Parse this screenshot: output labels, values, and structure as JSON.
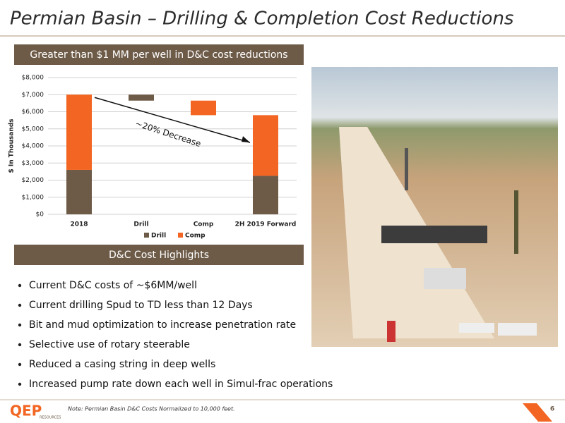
{
  "header": {
    "title": "Permian Basin – Drilling & Completion Cost Reductions"
  },
  "banner_top": "Greater than $1 MM per well in D&C cost reductions",
  "chart_data": {
    "type": "waterfall",
    "categories": [
      "2018",
      "Drill",
      "Comp",
      "2H 2019 Forward"
    ],
    "series": [
      {
        "name": "Drill",
        "color": "#6d5b48",
        "values": [
          2600,
          -350,
          null,
          2250
        ]
      },
      {
        "name": "Comp",
        "color": "#f26522",
        "values": [
          4400,
          null,
          -850,
          3550
        ]
      }
    ],
    "ylabel": "$ In Thousands",
    "ylim": [
      0,
      8000
    ],
    "yticks": [
      {
        "value": 0,
        "label": "$0"
      },
      {
        "value": 1000,
        "label": "$1,000"
      },
      {
        "value": 2000,
        "label": "$2,000"
      },
      {
        "value": 3000,
        "label": "$3,000"
      },
      {
        "value": 4000,
        "label": "$4,000"
      },
      {
        "value": 5000,
        "label": "$5,000"
      },
      {
        "value": 6000,
        "label": "$6,000"
      },
      {
        "value": 7000,
        "label": "$7,000"
      },
      {
        "value": 8000,
        "label": "$8,000"
      }
    ],
    "grid": true,
    "legend": "bottom",
    "annotation": "~20% Decrease"
  },
  "banner_mid": "D&C Cost Highlights",
  "bullets": [
    "Current D&C costs of ~$6MM/well",
    "Current drilling Spud to TD less than 12 Days",
    "Bit and mud optimization to increase penetration rate",
    "Selective use of rotary steerable",
    "Reduced a casing string in deep wells",
    "Increased pump rate down each well in Simul-frac operations"
  ],
  "footer": {
    "logo": "QEP",
    "logo_sub": "RESOURCES",
    "note": "Note: Permian Basin D&C Costs Normalized to 10,000 feet.",
    "page": "6"
  }
}
